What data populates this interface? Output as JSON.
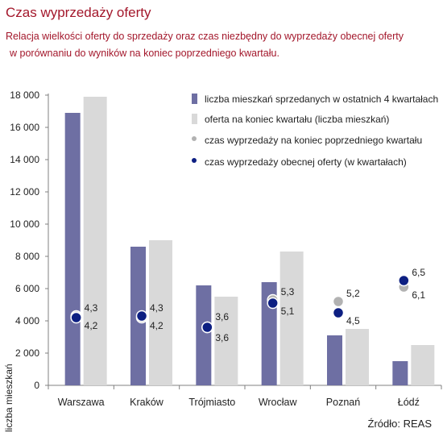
{
  "title": "Czas wyprzedaży oferty",
  "subtitle_line1": "Relacja wielkości oferty do sprzedaży oraz czas niezbędny do wyprzedaży obecnej oferty",
  "subtitle_line2": "w porównaniu do wyników na koniec poprzedniego kwartału.",
  "source": "Źródło: REAS",
  "colors": {
    "title": "#a3172b",
    "sold": "#6e6fa3",
    "offer": "#d9d9d9",
    "time_prev": "#b2b2b2",
    "time_curr": "#0d1f82"
  },
  "chart_data": {
    "type": "bar",
    "categories": [
      "Warszawa",
      "Kraków",
      "Trójmiasto",
      "Wrocław",
      "Poznań",
      "Łódź"
    ],
    "series": [
      {
        "name": "liczba mieszkań sprzedanych w ostatnich 4 kwartałach",
        "type": "bar",
        "values": [
          16900,
          8600,
          6200,
          6400,
          3100,
          1500
        ]
      },
      {
        "name": "oferta na koniec kwartału (liczba mieszkań)",
        "type": "bar",
        "values": [
          17900,
          9000,
          5500,
          8300,
          3500,
          2500
        ]
      },
      {
        "name": "czas wyprzedaży na koniec poprzedniego kwartału",
        "type": "point",
        "values": [
          4.3,
          4.2,
          3.6,
          5.3,
          5.2,
          6.1
        ],
        "labels": [
          "4,3",
          "4,2",
          "3,6",
          "5,3",
          "5,2",
          "6,1"
        ]
      },
      {
        "name": "czas wyprzedaży obecnej oferty (w kwartałach)",
        "type": "point",
        "values": [
          4.2,
          4.3,
          3.6,
          5.1,
          4.5,
          6.5
        ],
        "labels": [
          "4,2",
          "4,3",
          "3,6",
          "5,1",
          "4,5",
          "6,5"
        ]
      }
    ],
    "ylabel": "liczba mieszkań",
    "ylim": [
      0,
      18000
    ],
    "yticks": [
      0,
      2000,
      4000,
      6000,
      8000,
      10000,
      12000,
      14000,
      16000,
      18000
    ],
    "ytick_labels": [
      "0",
      "2 000",
      "4 000",
      "6 000",
      "8 000",
      "10 000",
      "12 000",
      "14 000",
      "16 000",
      "18 000"
    ],
    "legend_position": "top-right",
    "grid": false
  }
}
